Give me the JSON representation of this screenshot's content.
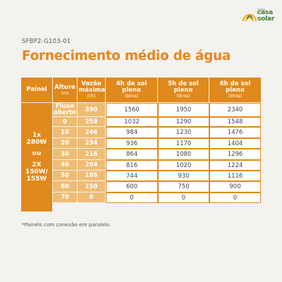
{
  "brand": {
    "small": "eletro",
    "line1": "casa",
    "line2": "solar"
  },
  "code": "SFBP2-G103-01",
  "title": "Fornecimento médio de água",
  "table": {
    "headers": {
      "painel": "Painel",
      "altura": "Altura",
      "altura_unit": "(m)",
      "vazao": "Vazão máxima",
      "vazao_unit": "(l/h)",
      "h4": "4h de sol pleno",
      "h4_unit": "(litros)",
      "h5": "5h de sol pleno",
      "h5_unit": "(litros)",
      "h6": "6h de sol pleno",
      "h6_unit": "(litros)"
    },
    "panel": {
      "line1": "1x",
      "line2": "280W",
      "line3": "ou",
      "line4": "2X",
      "line5": "150W/",
      "line6": "155W"
    },
    "rows": [
      {
        "altura": "Fluxo aberto",
        "vazao": "390",
        "h4": "1560",
        "h5": "1950",
        "h6": "2340"
      },
      {
        "altura": "0",
        "vazao": "258",
        "h4": "1032",
        "h5": "1290",
        "h6": "1548"
      },
      {
        "altura": "10",
        "vazao": "246",
        "h4": "984",
        "h5": "1230",
        "h6": "1476"
      },
      {
        "altura": "20",
        "vazao": "234",
        "h4": "936",
        "h5": "1170",
        "h6": "1404"
      },
      {
        "altura": "30",
        "vazao": "216",
        "h4": "864",
        "h5": "1080",
        "h6": "1296"
      },
      {
        "altura": "40",
        "vazao": "204",
        "h4": "816",
        "h5": "1020",
        "h6": "1224"
      },
      {
        "altura": "50",
        "vazao": "186",
        "h4": "744",
        "h5": "930",
        "h6": "1116"
      },
      {
        "altura": "60",
        "vazao": "150",
        "h4": "600",
        "h5": "750",
        "h6": "900"
      },
      {
        "altura": "70",
        "vazao": "0",
        "h4": "0",
        "h5": "0",
        "h6": "0"
      }
    ]
  },
  "footnote": "*Painéis com conexão em paralelo.",
  "colors": {
    "accent": "#e0891c",
    "accent_light": "#efbc74",
    "brand_green": "#3d7a2f",
    "background": "#f3f2ef"
  }
}
